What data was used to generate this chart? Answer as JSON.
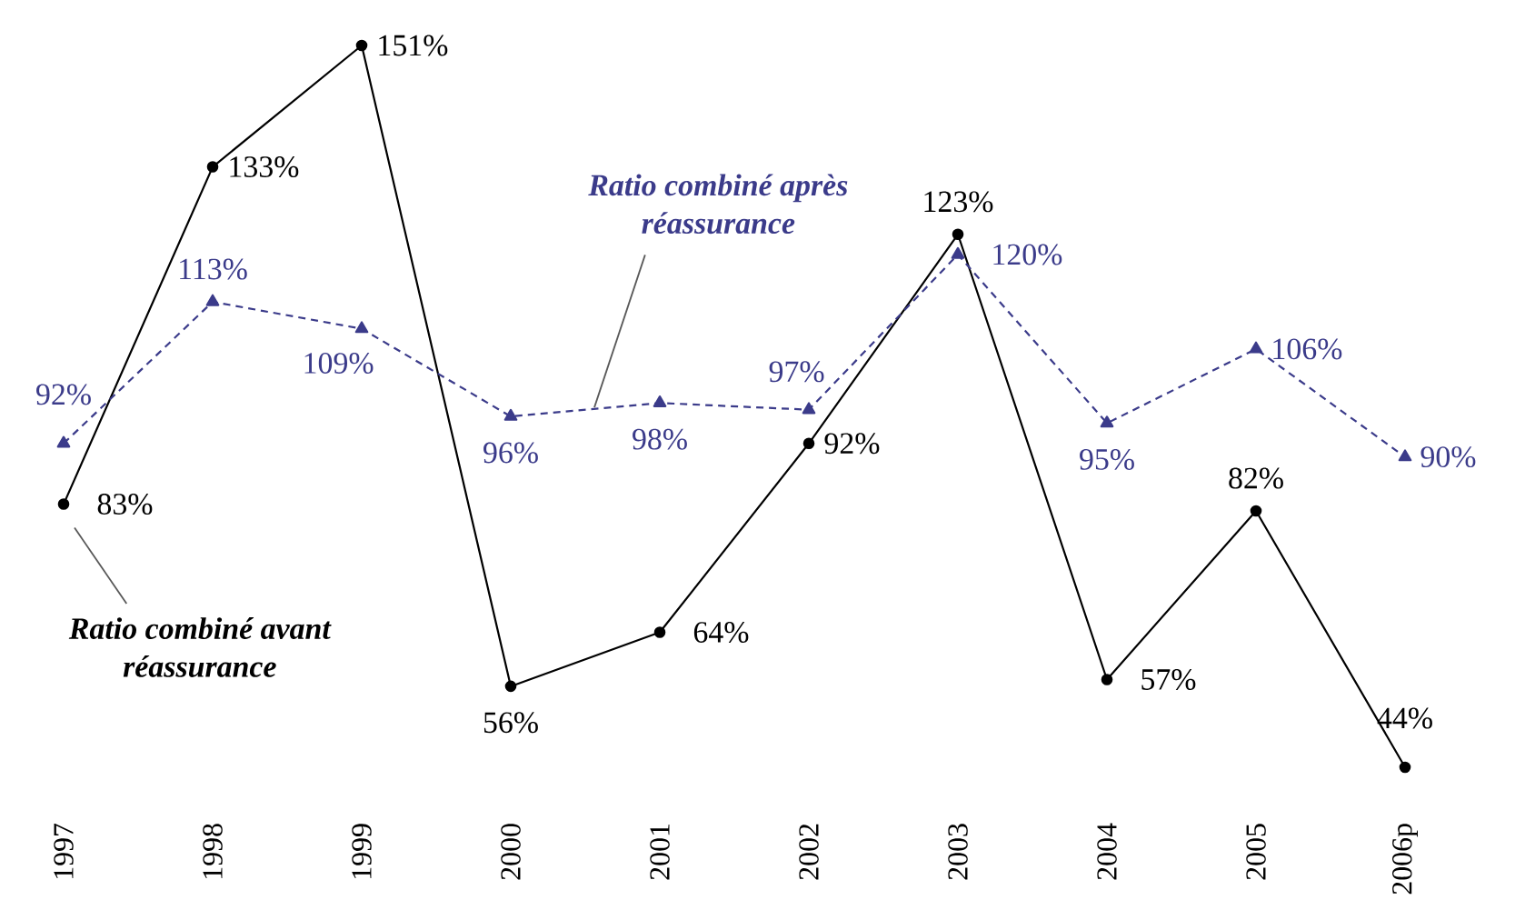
{
  "chart_data": {
    "type": "line",
    "categories": [
      "1997",
      "1998",
      "1999",
      "2000",
      "2001",
      "2002",
      "2003",
      "2004",
      "2005",
      "2006p"
    ],
    "series": [
      {
        "name": "Ratio combiné avant réassurance",
        "color": "#000000",
        "marker": "circle",
        "line_style": "solid",
        "values": [
          83,
          133,
          151,
          56,
          64,
          92,
          123,
          57,
          82,
          44
        ],
        "value_labels": [
          "83%",
          "133%",
          "151%",
          "56%",
          "64%",
          "92%",
          "123%",
          "57%",
          "82%",
          "44%"
        ]
      },
      {
        "name": "Ratio combiné après réassurance",
        "color": "#3b3b8a",
        "marker": "triangle",
        "line_style": "dashed",
        "values": [
          92,
          113,
          109,
          96,
          98,
          97,
          120,
          95,
          106,
          90
        ],
        "value_labels": [
          "92%",
          "113%",
          "109%",
          "96%",
          "98%",
          "97%",
          "120%",
          "95%",
          "106%",
          "90%"
        ]
      }
    ],
    "legend": false,
    "tick_labels": "x"
  }
}
